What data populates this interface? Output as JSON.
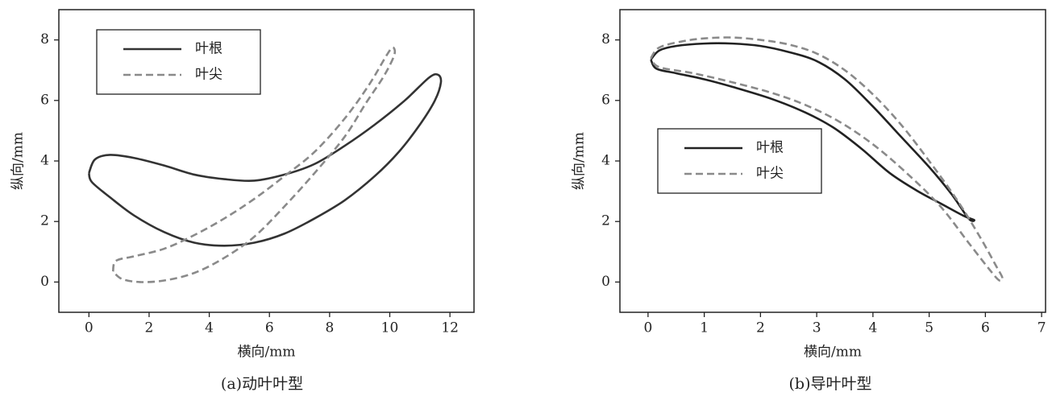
{
  "chart_data": [
    {
      "type": "line",
      "caption": "(a)动叶叶型",
      "xlabel": "横向/mm",
      "ylabel": "纵向/mm",
      "xlim": [
        -1,
        12.8
      ],
      "ylim": [
        -1,
        9
      ],
      "xticks": [
        0,
        2,
        4,
        6,
        8,
        10,
        12
      ],
      "yticks": [
        0,
        2,
        4,
        6,
        8
      ],
      "legend": "upper left",
      "series": [
        {
          "name": "叶根",
          "color": "#333333",
          "dash": "solid",
          "x": [
            0,
            0.2,
            0.7,
            1.5,
            2.5,
            3.5,
            4.5,
            5.5,
            6.5,
            7.5,
            8.5,
            9.5,
            10.5,
            11.3,
            11.6,
            11.7,
            11.5,
            11,
            10.3,
            9.5,
            8.5,
            7.5,
            6.5,
            5.5,
            4.5,
            3.5,
            2.5,
            1.5,
            0.7,
            0.1,
            0
          ],
          "y": [
            3.6,
            4.05,
            4.2,
            4.1,
            3.85,
            3.55,
            3.4,
            3.35,
            3.55,
            3.9,
            4.5,
            5.2,
            6.0,
            6.75,
            6.85,
            6.6,
            6.0,
            5.2,
            4.3,
            3.5,
            2.7,
            2.1,
            1.6,
            1.3,
            1.2,
            1.3,
            1.65,
            2.2,
            2.8,
            3.3,
            3.6
          ]
        },
        {
          "name": "叶尖",
          "color": "#8a8a8a",
          "dash": "dashed",
          "x": [
            0.8,
            0.9,
            1.5,
            2.5,
            3.5,
            4.5,
            5.5,
            6.5,
            7.5,
            8.5,
            9.3,
            9.9,
            10.1,
            10.15,
            9.8,
            9.2,
            8.5,
            7.5,
            6.5,
            5.5,
            4.5,
            3.5,
            2.5,
            1.7,
            1.1,
            0.8
          ],
          "y": [
            0.35,
            0.7,
            0.85,
            1.1,
            1.55,
            2.1,
            2.75,
            3.5,
            4.3,
            5.4,
            6.5,
            7.5,
            7.75,
            7.5,
            6.8,
            5.9,
            4.8,
            3.6,
            2.5,
            1.5,
            0.8,
            0.3,
            0.05,
            0,
            0.1,
            0.35
          ]
        }
      ]
    },
    {
      "type": "line",
      "caption": "(b)导叶叶型",
      "xlabel": "横向/mm",
      "ylabel": "纵向/mm",
      "xlim": [
        -0.5,
        7.07
      ],
      "ylim": [
        -1,
        9
      ],
      "xticks": [
        0,
        1,
        2,
        3,
        4,
        5,
        6,
        7
      ],
      "yticks": [
        0,
        2,
        4,
        6,
        8
      ],
      "legend": "center left",
      "series": [
        {
          "name": "叶根",
          "color": "#222222",
          "dash": "solid",
          "x": [
            0.05,
            0.2,
            0.5,
            1,
            1.5,
            2,
            2.5,
            3,
            3.5,
            4,
            4.5,
            5,
            5.4,
            5.7,
            5.8,
            5.6,
            5.2,
            4.8,
            4.3,
            3.8,
            3.3,
            2.8,
            2.2,
            1.5,
            1,
            0.5,
            0.15,
            0.05
          ],
          "y": [
            7.35,
            7.65,
            7.8,
            7.88,
            7.88,
            7.8,
            7.6,
            7.3,
            6.7,
            5.8,
            4.8,
            3.8,
            2.9,
            2.1,
            2.05,
            2.2,
            2.6,
            3.0,
            3.6,
            4.4,
            5.1,
            5.6,
            6.05,
            6.45,
            6.7,
            6.9,
            7.05,
            7.35
          ]
        },
        {
          "name": "叶尖",
          "color": "#8a8a8a",
          "dash": "dashed",
          "x": [
            0.05,
            0.2,
            0.6,
            1,
            1.5,
            2,
            2.5,
            3,
            3.5,
            4,
            4.5,
            5,
            5.5,
            5.9,
            6.2,
            6.3,
            6.25,
            6.1,
            5.7,
            5.2,
            4.6,
            4,
            3.4,
            2.8,
            2.2,
            1.5,
            0.8,
            0.2,
            0.05
          ],
          "y": [
            7.4,
            7.75,
            7.95,
            8.05,
            8.08,
            8.0,
            7.85,
            7.55,
            7.0,
            6.2,
            5.2,
            4.0,
            2.7,
            1.5,
            0.5,
            0.15,
            0.05,
            0.35,
            1.3,
            2.5,
            3.6,
            4.55,
            5.3,
            5.85,
            6.25,
            6.6,
            6.9,
            7.1,
            7.4
          ]
        }
      ]
    }
  ]
}
